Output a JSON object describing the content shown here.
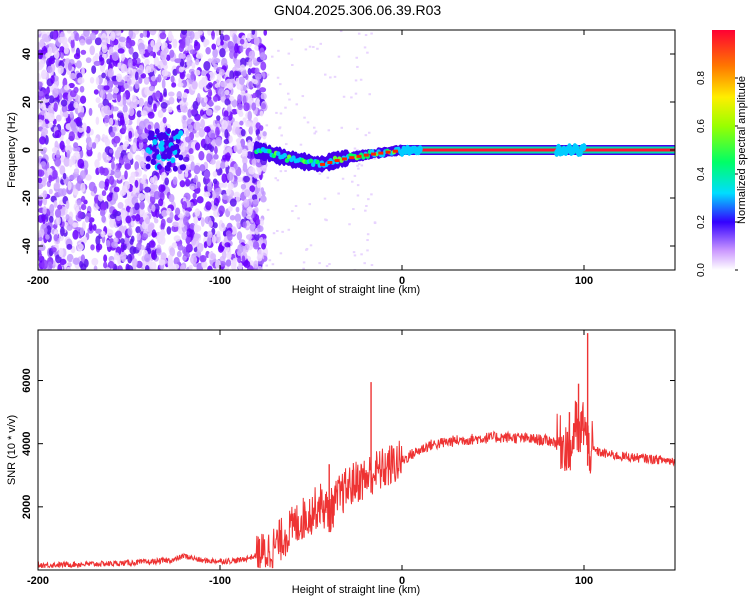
{
  "title": "GN04.2025.306.06.39.R03",
  "chart_data": [
    {
      "type": "heatmap",
      "xlabel": "Height of straight line (km)",
      "ylabel": "Frequency (Hz)",
      "xlim": [
        -200,
        150
      ],
      "ylim": [
        -50,
        50
      ],
      "xticks": [
        -200,
        -100,
        0,
        100
      ],
      "yticks": [
        -40,
        -20,
        0,
        20,
        40
      ],
      "colorbar": {
        "label": "Normalized spectral amplitude",
        "range": [
          0,
          1
        ],
        "ticks": [
          "0.0",
          "0.2",
          "0.4",
          "0.6",
          "0.8"
        ]
      },
      "ridge": {
        "description_points": [
          {
            "x": -80,
            "y": 0
          },
          {
            "x": -60,
            "y": -4
          },
          {
            "x": -45,
            "y": -6
          },
          {
            "x": -35,
            "y": -4
          },
          {
            "x": -20,
            "y": -2
          },
          {
            "x": 0,
            "y": 0
          },
          {
            "x": 150,
            "y": 0
          }
        ]
      }
    },
    {
      "type": "line",
      "xlabel": "Height of straight line (km)",
      "ylabel": "SNR (10 * v/v)",
      "xlim": [
        -200,
        150
      ],
      "ylim": [
        0,
        7600
      ],
      "xticks": [
        -200,
        -100,
        0,
        100
      ],
      "yticks": [
        2000,
        4000,
        6000
      ],
      "series": [
        {
          "name": "SNR",
          "color": "#ee3333",
          "x": [
            -200,
            -180,
            -160,
            -140,
            -125,
            -120,
            -110,
            -100,
            -90,
            -80,
            -75,
            -70,
            -65,
            -60,
            -55,
            -50,
            -45,
            -40,
            -35,
            -30,
            -25,
            -20,
            -17,
            -15,
            -10,
            -5,
            0,
            5,
            10,
            15,
            20,
            25,
            30,
            40,
            50,
            60,
            70,
            80,
            85,
            90,
            93,
            95,
            98,
            100,
            102,
            105,
            110,
            120,
            130,
            140,
            150
          ],
          "y": [
            150,
            180,
            200,
            250,
            320,
            450,
            300,
            280,
            300,
            450,
            550,
            750,
            1050,
            1350,
            1600,
            1800,
            2100,
            1800,
            2300,
            2600,
            2800,
            2900,
            3050,
            3100,
            3200,
            3350,
            3450,
            3650,
            3800,
            3950,
            4000,
            4050,
            4100,
            4150,
            4200,
            4200,
            4150,
            4100,
            4050,
            4000,
            3800,
            4600,
            4200,
            4800,
            3900,
            3800,
            3700,
            3600,
            3550,
            3500,
            3450
          ]
        }
      ],
      "spikes": [
        {
          "x": -17,
          "y": 5950
        },
        {
          "x": -40,
          "y": 3350
        },
        {
          "x": 92,
          "y": 5000
        },
        {
          "x": 97,
          "y": 5900
        },
        {
          "x": 102,
          "y": 7500
        }
      ]
    }
  ]
}
